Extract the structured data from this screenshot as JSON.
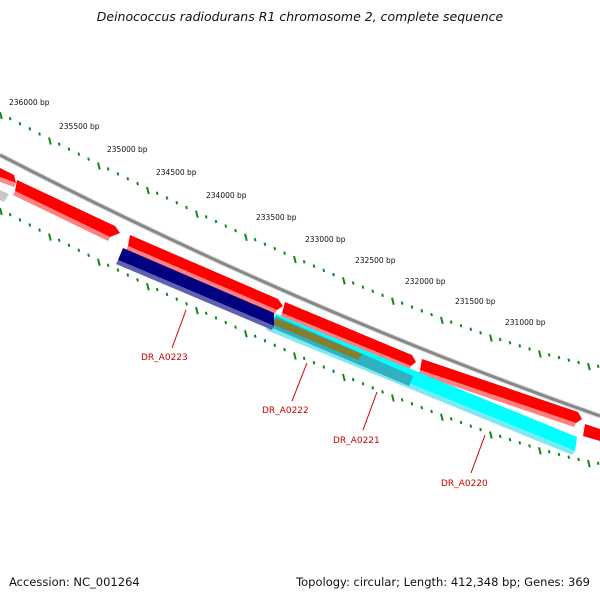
{
  "title": "Deinococcus radiodurans R1 chromosome 2, complete sequence",
  "footer": {
    "accession": "Accession: NC_001264",
    "summary": "Topology: circular; Length: 412,348 bp; Genes: 369"
  },
  "colors": {
    "backbone": "#888888",
    "forward_feature": "#ff0000",
    "tick_outer": "#11881e",
    "tick_inner": "#11881e",
    "gene_label": "#cc0000",
    "leader_line": "#cc0000"
  },
  "ruler": {
    "unit": "bp",
    "labels": [
      "236000 bp",
      "235500 bp",
      "235000 bp",
      "234500 bp",
      "234000 bp",
      "233500 bp",
      "233000 bp",
      "232500 bp",
      "232000 bp",
      "231500 bp",
      "231000 bp"
    ]
  },
  "genes": [
    {
      "label": "DR_A0223",
      "color": "#000080"
    },
    {
      "label": "DR_A0222",
      "color": "#808030"
    },
    {
      "label": "DR_A0221",
      "color": "#20a0b0"
    },
    {
      "label": "DR_A0220",
      "color": "#00ffff"
    }
  ]
}
